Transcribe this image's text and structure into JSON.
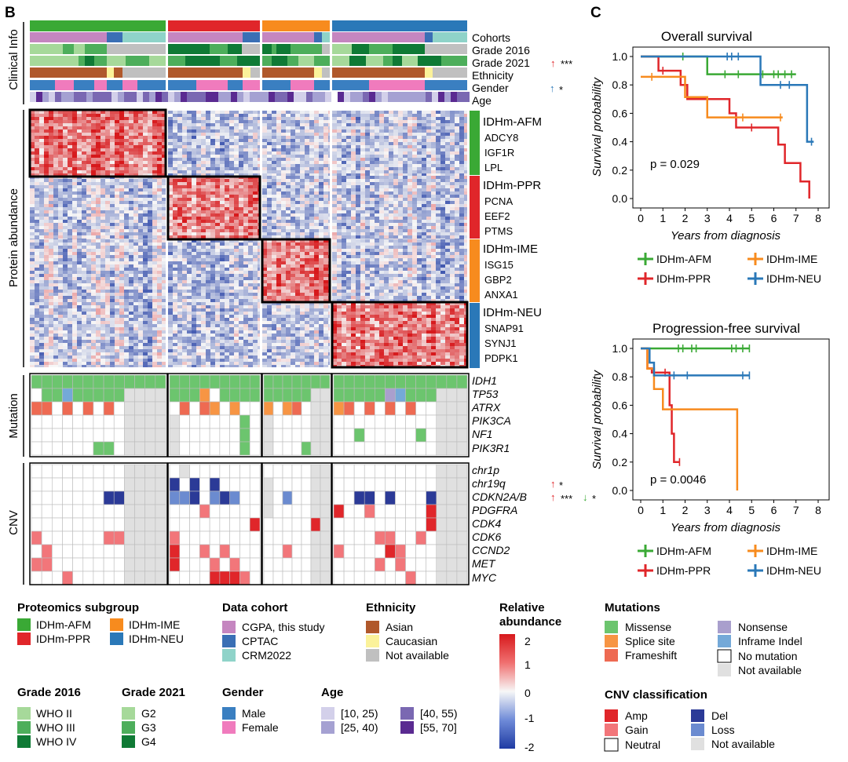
{
  "panel_b": "B",
  "panel_c": "C",
  "colors": {
    "AFM": "#3aa935",
    "PPR": "#e0262a",
    "IME": "#f78b1e",
    "NEU": "#2a78b8",
    "cgpa": "#c586c0",
    "cptac": "#3a6fb5",
    "crm": "#8fd3c9",
    "asian": "#b0582b",
    "caucasian": "#fbf29a",
    "na": "#c0c0c0",
    "male": "#3a7fc1",
    "female": "#f07bbd",
    "g2": "#a6d99a",
    "g3": "#4dae5b",
    "g4": "#0f7a35",
    "age1": "#d3d0ea",
    "age2": "#a5a1d2",
    "age3": "#7a68b2",
    "age4": "#5a2a91",
    "missense": "#6cc56e",
    "splice": "#f79544",
    "frameshift": "#ee6a52",
    "nonsense": "#a99fcd",
    "inframe": "#74a9d8",
    "nodata": "#e0e0e0",
    "amp": "#e0262a",
    "gain": "#f2767a",
    "del": "#2b3a97",
    "loss": "#6b8bd0"
  },
  "clinical": {
    "section_label": "Clinical Info",
    "tracks": [
      "Cohorts",
      "Grade 2016",
      "Grade 2021",
      "Ethnicity",
      "Gender",
      "Age"
    ],
    "grade2021_stars": "***",
    "gender_stars": "*"
  },
  "protein": {
    "section_label": "Protein abundance",
    "groups": [
      {
        "name": "IDHm-AFM",
        "genes": [
          "ADCY8",
          "IGF1R",
          "LPL"
        ]
      },
      {
        "name": "IDHm-PPR",
        "genes": [
          "PCNA",
          "EEF2",
          "PTMS"
        ]
      },
      {
        "name": "IDHm-IME",
        "genes": [
          "ISG15",
          "GBP2",
          "ANXA1"
        ]
      },
      {
        "name": "IDHm-NEU",
        "genes": [
          "SNAP91",
          "SYNJ1",
          "PDPK1"
        ]
      }
    ]
  },
  "mutation": {
    "section_label": "Mutation",
    "genes": [
      "IDH1",
      "TP53",
      "ATRX",
      "PIK3CA",
      "NF1",
      "PIK3R1"
    ]
  },
  "cnv": {
    "section_label": "CNV",
    "genes": [
      "chr1p",
      "chr19q",
      "CDKN2A/B",
      "PDGFRA",
      "CDK4",
      "CDK6",
      "CCND2",
      "MET",
      "MYC"
    ],
    "chr19q_stars": "*",
    "cdkn_stars_up": "***",
    "cdkn_stars_down": "*"
  },
  "legends": {
    "proteomics": {
      "title": "Proteomics subgroup",
      "items": [
        "IDHm-AFM",
        "IDHm-IME",
        "IDHm-PPR",
        "IDHm-NEU"
      ]
    },
    "cohort": {
      "title": "Data cohort",
      "items": [
        "CGPA, this study",
        "CPTAC",
        "CRM2022"
      ]
    },
    "ethnicity": {
      "title": "Ethnicity",
      "items": [
        "Asian",
        "Caucasian",
        "Not available"
      ]
    },
    "abundance": {
      "title_line1": "Relative",
      "title_line2": "abundance",
      "ticks": [
        "2",
        "1",
        "0",
        "-1",
        "-2"
      ]
    },
    "mutations": {
      "title": "Mutations",
      "items": [
        "Missense",
        "Nonsense",
        "Splice site",
        "Inframe Indel",
        "Frameshift",
        "No mutation",
        "Not available"
      ]
    },
    "grade2016": {
      "title": "Grade 2016",
      "items": [
        "WHO II",
        "WHO III",
        "WHO IV"
      ]
    },
    "grade2021": {
      "title": "Grade 2021",
      "items": [
        "G2",
        "G3",
        "G4"
      ]
    },
    "gender": {
      "title": "Gender",
      "items": [
        "Male",
        "Female"
      ]
    },
    "age": {
      "title": "Age",
      "items": [
        "[10, 25)",
        "[40, 55)",
        "[25, 40)",
        "[55, 70]"
      ]
    },
    "cnvclass": {
      "title": "CNV classification",
      "items": [
        "Amp",
        "Del",
        "Gain",
        "Loss",
        "Neutral",
        "Not available"
      ]
    }
  },
  "survival_legend": [
    "IDHm-AFM",
    "IDHm-IME",
    "IDHm-PPR",
    "IDHm-NEU"
  ],
  "chart_data": [
    {
      "type": "line",
      "subtype": "kaplan-meier",
      "title": "Overall survival",
      "xlabel": "Years from diagnosis",
      "ylabel": "Survival probability",
      "xlim": [
        0,
        8
      ],
      "ylim": [
        0,
        1
      ],
      "xticks": [
        "0",
        "1",
        "2",
        "3",
        "4",
        "5",
        "6",
        "7",
        "8"
      ],
      "yticks": [
        "0.0",
        "0.2",
        "0.4",
        "0.6",
        "0.8",
        "1.0"
      ],
      "annotation": "p = 0.029",
      "series": [
        {
          "name": "IDHm-AFM",
          "steps": [
            [
              0,
              1.0
            ],
            [
              3.0,
              0.875
            ],
            [
              7.0,
              0.875
            ]
          ],
          "censored": [
            [
              1.9,
              1.0
            ],
            [
              3.8,
              0.875
            ],
            [
              4.4,
              0.875
            ],
            [
              5.5,
              0.875
            ],
            [
              6.0,
              0.875
            ],
            [
              6.2,
              0.875
            ],
            [
              6.5,
              0.875
            ],
            [
              6.8,
              0.875
            ]
          ]
        },
        {
          "name": "IDHm-PPR",
          "steps": [
            [
              0,
              1.0
            ],
            [
              0.8,
              0.9
            ],
            [
              1.8,
              0.8
            ],
            [
              2.1,
              0.7
            ],
            [
              4.0,
              0.6
            ],
            [
              4.3,
              0.5
            ],
            [
              6.2,
              0.38
            ],
            [
              6.5,
              0.25
            ],
            [
              7.2,
              0.12
            ],
            [
              7.6,
              0.0
            ]
          ],
          "censored": [
            [
              1.0,
              0.9
            ],
            [
              5.0,
              0.5
            ]
          ]
        },
        {
          "name": "IDHm-IME",
          "steps": [
            [
              0,
              0.857
            ],
            [
              2.0,
              0.714
            ],
            [
              3.0,
              0.571
            ],
            [
              6.4,
              0.571
            ]
          ],
          "censored": [
            [
              0.5,
              0.857
            ],
            [
              4.6,
              0.571
            ],
            [
              6.3,
              0.571
            ]
          ]
        },
        {
          "name": "IDHm-NEU",
          "steps": [
            [
              0,
              1.0
            ],
            [
              5.4,
              0.8
            ],
            [
              7.5,
              0.4
            ],
            [
              7.8,
              0.4
            ]
          ],
          "censored": [
            [
              3.9,
              1.0
            ],
            [
              4.1,
              1.0
            ],
            [
              4.4,
              1.0
            ],
            [
              6.3,
              0.8
            ],
            [
              6.7,
              0.8
            ],
            [
              7.7,
              0.4
            ]
          ]
        }
      ]
    },
    {
      "type": "line",
      "subtype": "kaplan-meier",
      "title": "Progression-free survival",
      "xlabel": "Years from diagnosis",
      "ylabel": "Survival probability",
      "xlim": [
        0,
        8
      ],
      "ylim": [
        0,
        1
      ],
      "xticks": [
        "0",
        "1",
        "2",
        "3",
        "4",
        "5",
        "6",
        "7",
        "8"
      ],
      "yticks": [
        "0.0",
        "0.2",
        "0.4",
        "0.6",
        "0.8",
        "1.0"
      ],
      "annotation": "p = 0.0046",
      "series": [
        {
          "name": "IDHm-AFM",
          "steps": [
            [
              0,
              1.0
            ],
            [
              4.9,
              1.0
            ]
          ],
          "censored": [
            [
              1.7,
              1.0
            ],
            [
              1.9,
              1.0
            ],
            [
              2.3,
              1.0
            ],
            [
              2.5,
              1.0
            ],
            [
              4.1,
              1.0
            ],
            [
              4.3,
              1.0
            ],
            [
              4.6,
              1.0
            ],
            [
              4.9,
              1.0
            ]
          ]
        },
        {
          "name": "IDHm-PPR",
          "steps": [
            [
              0,
              1.0
            ],
            [
              0.3,
              0.86
            ],
            [
              0.5,
              0.83
            ],
            [
              1.3,
              0.6
            ],
            [
              1.4,
              0.4
            ],
            [
              1.5,
              0.2
            ],
            [
              1.75,
              0.2
            ]
          ],
          "censored": [
            [
              1.1,
              0.83
            ],
            [
              1.75,
              0.2
            ]
          ]
        },
        {
          "name": "IDHm-IME",
          "steps": [
            [
              0,
              1.0
            ],
            [
              0.3,
              0.857
            ],
            [
              0.6,
              0.714
            ],
            [
              1.0,
              0.571
            ],
            [
              4.3,
              0.571
            ],
            [
              4.35,
              0.0
            ]
          ],
          "censored": []
        },
        {
          "name": "IDHm-NEU",
          "steps": [
            [
              0,
              1.0
            ],
            [
              0.4,
              0.9
            ],
            [
              0.6,
              0.81
            ],
            [
              4.9,
              0.81
            ]
          ],
          "censored": [
            [
              1.5,
              0.81
            ],
            [
              2.1,
              0.81
            ],
            [
              4.6,
              0.81
            ],
            [
              4.9,
              0.81
            ]
          ]
        }
      ]
    }
  ]
}
